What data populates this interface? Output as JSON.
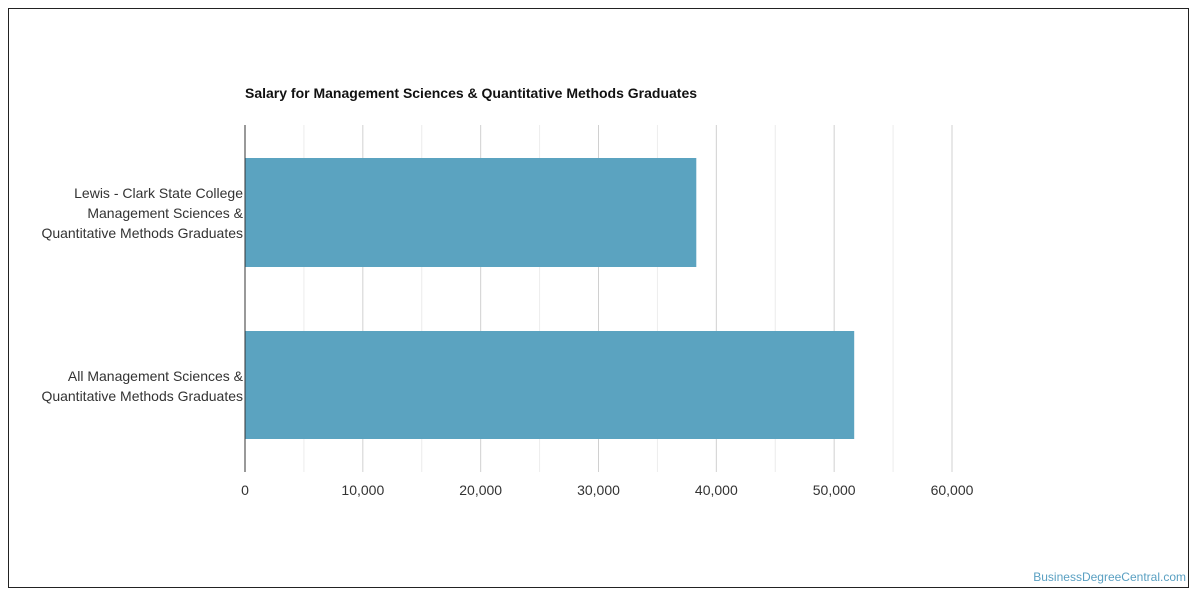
{
  "chart_data": {
    "type": "bar",
    "orientation": "horizontal",
    "title": "Salary for Management Sciences & Quantitative Methods Graduates",
    "categories": [
      "Lewis - Clark State College\nManagement Sciences &\nQuantitative Methods Graduates",
      "All Management Sciences &\nQuantitative Methods Graduates"
    ],
    "values": [
      38300,
      51700
    ],
    "xlim": [
      0,
      60000
    ],
    "xticks": [
      "0",
      "10,000",
      "20,000",
      "30,000",
      "40,000",
      "50,000",
      "60,000"
    ],
    "bar_color": "#5ba3c0",
    "grid": true
  },
  "credit": "BusinessDegreeCentral.com"
}
